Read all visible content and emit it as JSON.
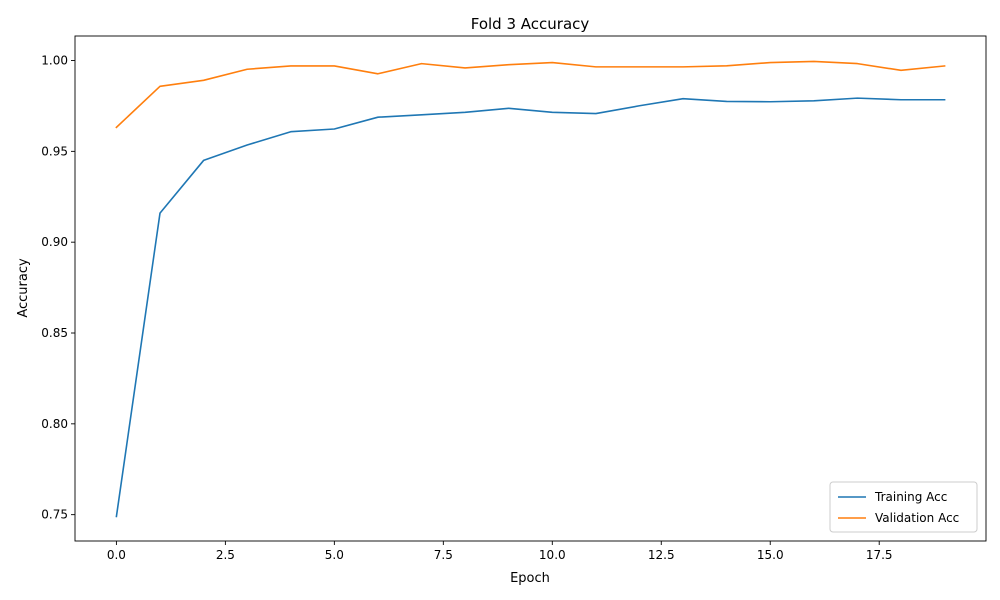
{
  "chart_data": {
    "type": "line",
    "title": "Fold 3 Accuracy",
    "xlabel": "Epoch",
    "ylabel": "Accuracy",
    "x": [
      0,
      1,
      2,
      3,
      4,
      5,
      6,
      7,
      8,
      9,
      10,
      11,
      12,
      13,
      14,
      15,
      16,
      17,
      18,
      19
    ],
    "xlim": [
      -0.95,
      19.95
    ],
    "ylim": [
      0.7355,
      1.0135
    ],
    "x_ticks": [
      0.0,
      2.5,
      5.0,
      7.5,
      10.0,
      12.5,
      15.0,
      17.5
    ],
    "x_tick_labels": [
      "0.0",
      "2.5",
      "5.0",
      "7.5",
      "10.0",
      "12.5",
      "15.0",
      "17.5"
    ],
    "y_ticks": [
      0.75,
      0.8,
      0.85,
      0.9,
      0.95,
      1.0
    ],
    "y_tick_labels": [
      "0.75",
      "0.80",
      "0.85",
      "0.90",
      "0.95",
      "1.00"
    ],
    "grid": false,
    "legend_position": "bottom-right",
    "series": [
      {
        "name": "Training Acc",
        "color": "#1f77b4",
        "values": [
          0.749,
          0.916,
          0.945,
          0.9535,
          0.9608,
          0.9623,
          0.9688,
          0.9701,
          0.9715,
          0.9737,
          0.9715,
          0.9708,
          0.9751,
          0.979,
          0.9775,
          0.9773,
          0.9778,
          0.9793,
          0.9784,
          0.9784
        ]
      },
      {
        "name": "Validation Acc",
        "color": "#ff7f0e",
        "values": [
          0.9632,
          0.9858,
          0.9891,
          0.9952,
          0.997,
          0.997,
          0.9927,
          0.9983,
          0.9959,
          0.9977,
          0.9989,
          0.9965,
          0.9965,
          0.9965,
          0.9971,
          0.9989,
          0.9995,
          0.9983,
          0.9946,
          0.997
        ]
      }
    ]
  }
}
